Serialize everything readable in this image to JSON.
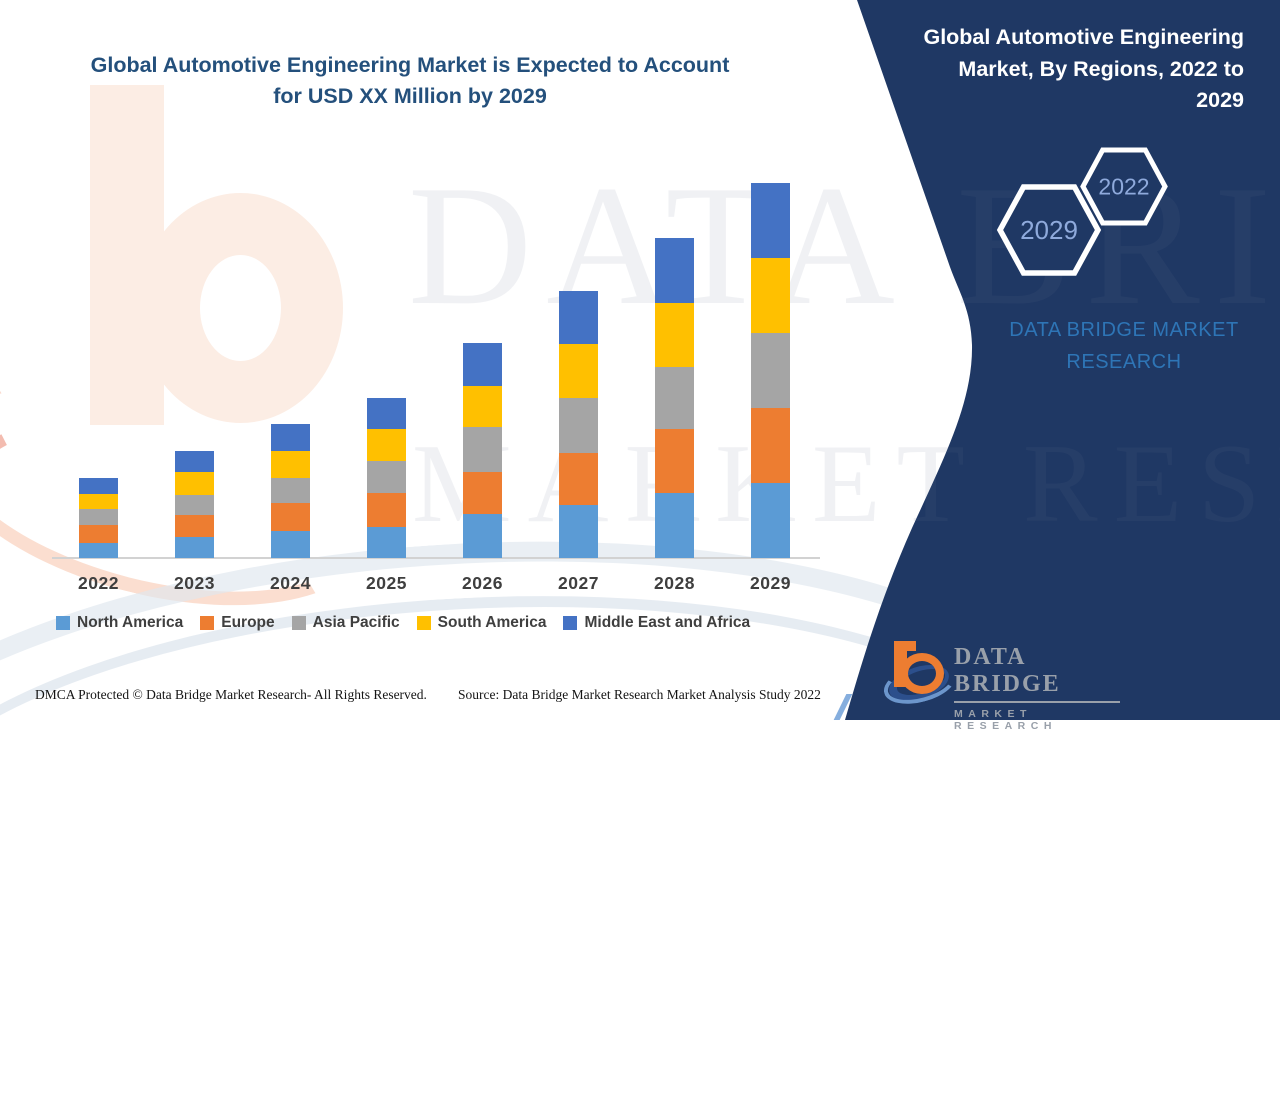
{
  "header": {
    "title_line1": "Global Automotive Engineering Market is Expected to Account",
    "title_line2": "for USD XX Million by 2029"
  },
  "side_panel": {
    "bg_color": "#1F3864",
    "title_lines": [
      "Global Automotive Engineering",
      "Market, By Regions, 2022 to",
      "2029"
    ],
    "hexagons": [
      {
        "label": "2029"
      },
      {
        "label": "2022"
      }
    ],
    "hex_label_color": "#8FAADC",
    "brand_line1": "DATA BRIDGE MARKET",
    "brand_line2": "RESEARCH"
  },
  "watermark": {
    "line1": "DATA BRIDGE",
    "line2": "MARKET RESEARCH"
  },
  "logo": {
    "name": "DATA BRIDGE",
    "subtitle": "MARKET  RESEARCH"
  },
  "footer": {
    "left": "DMCA Protected © Data Bridge Market Research- All Rights Reserved.",
    "right": "Source: Data Bridge Market Research Market Analysis Study 2022"
  },
  "chart_data": {
    "type": "bar",
    "stacked": true,
    "title": "Global Automotive Engineering Market, By Regions, 2022 to 2029",
    "categories": [
      "2022",
      "2023",
      "2024",
      "2025",
      "2026",
      "2027",
      "2028",
      "2029"
    ],
    "series": [
      {
        "name": "North America",
        "color": "#5B9BD5",
        "values": [
          15,
          21,
          27,
          31,
          44,
          53,
          65,
          75
        ]
      },
      {
        "name": "Europe",
        "color": "#ED7D31",
        "values": [
          18,
          22,
          28,
          34,
          42,
          52,
          64,
          75
        ]
      },
      {
        "name": "Asia Pacific",
        "color": "#A5A5A5",
        "values": [
          16,
          20,
          25,
          32,
          45,
          55,
          62,
          75
        ]
      },
      {
        "name": "South America",
        "color": "#FFC000",
        "values": [
          15,
          23,
          27,
          32,
          41,
          54,
          64,
          75
        ]
      },
      {
        "name": "Middle East and Africa",
        "color": "#4472C4",
        "values": [
          16,
          21,
          27,
          31,
          43,
          53,
          65,
          75
        ]
      }
    ],
    "units": "relative units (actual values shown as USD XX Million, not disclosed)",
    "value_axis_visible": false,
    "grid": false,
    "legend_position": "bottom"
  }
}
